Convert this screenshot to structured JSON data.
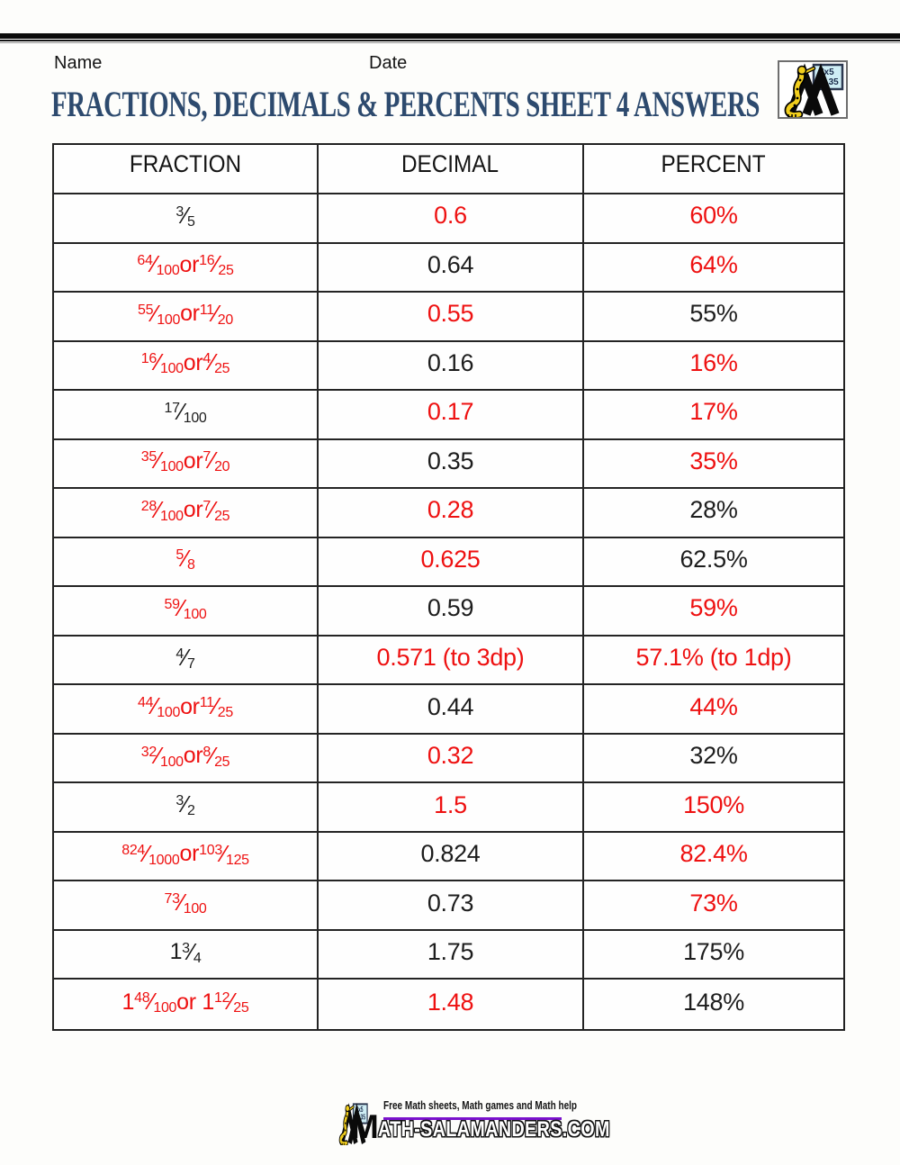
{
  "header": {
    "name_label": "Name",
    "date_label": "Date",
    "title": "FRACTIONS, DECIMALS & PERCENTS SHEET 4 ANSWERS",
    "title_color": "#2d4a6e"
  },
  "logo": {
    "board_line1": "7x5",
    "board_line2": "= 35"
  },
  "colors": {
    "red": "#ee1111",
    "black": "#1d1d1d"
  },
  "table": {
    "columns": [
      "FRACTION",
      "DECIMAL",
      "PERCENT"
    ],
    "rows": [
      {
        "fraction": {
          "color": "black",
          "tokens": [
            {
              "t": "frac",
              "n": "3",
              "d": "5"
            }
          ]
        },
        "decimal": {
          "color": "red",
          "text": "0.6"
        },
        "percent": {
          "color": "red",
          "text": "60%"
        }
      },
      {
        "fraction": {
          "color": "red",
          "tokens": [
            {
              "t": "frac",
              "n": "64",
              "d": "100"
            },
            {
              "t": "text",
              "v": " or "
            },
            {
              "t": "frac",
              "n": "16",
              "d": "25"
            }
          ]
        },
        "decimal": {
          "color": "black",
          "text": "0.64"
        },
        "percent": {
          "color": "red",
          "text": "64%"
        }
      },
      {
        "fraction": {
          "color": "red",
          "tokens": [
            {
              "t": "frac",
              "n": "55",
              "d": "100"
            },
            {
              "t": "text",
              "v": " or "
            },
            {
              "t": "frac",
              "n": "11",
              "d": "20"
            }
          ]
        },
        "decimal": {
          "color": "red",
          "text": "0.55"
        },
        "percent": {
          "color": "black",
          "text": "55%"
        }
      },
      {
        "fraction": {
          "color": "red",
          "tokens": [
            {
              "t": "frac",
              "n": "16",
              "d": "100"
            },
            {
              "t": "text",
              "v": " or "
            },
            {
              "t": "frac",
              "n": "4",
              "d": "25"
            }
          ]
        },
        "decimal": {
          "color": "black",
          "text": "0.16"
        },
        "percent": {
          "color": "red",
          "text": "16%"
        }
      },
      {
        "fraction": {
          "color": "black",
          "tokens": [
            {
              "t": "frac",
              "n": "17",
              "d": "100"
            }
          ]
        },
        "decimal": {
          "color": "red",
          "text": "0.17"
        },
        "percent": {
          "color": "red",
          "text": "17%"
        }
      },
      {
        "fraction": {
          "color": "red",
          "tokens": [
            {
              "t": "frac",
              "n": "35",
              "d": "100"
            },
            {
              "t": "text",
              "v": " or "
            },
            {
              "t": "frac",
              "n": "7",
              "d": "20"
            }
          ]
        },
        "decimal": {
          "color": "black",
          "text": "0.35"
        },
        "percent": {
          "color": "red",
          "text": "35%"
        }
      },
      {
        "fraction": {
          "color": "red",
          "tokens": [
            {
              "t": "frac",
              "n": "28",
              "d": "100"
            },
            {
              "t": "text",
              "v": " or "
            },
            {
              "t": "frac",
              "n": "7",
              "d": "25"
            }
          ]
        },
        "decimal": {
          "color": "red",
          "text": "0.28"
        },
        "percent": {
          "color": "black",
          "text": "28%"
        }
      },
      {
        "fraction": {
          "color": "red",
          "tokens": [
            {
              "t": "frac",
              "n": "5",
              "d": "8"
            }
          ]
        },
        "decimal": {
          "color": "red",
          "text": "0.625"
        },
        "percent": {
          "color": "black",
          "text": "62.5%"
        }
      },
      {
        "fraction": {
          "color": "red",
          "tokens": [
            {
              "t": "frac",
              "n": "59",
              "d": "100"
            }
          ]
        },
        "decimal": {
          "color": "black",
          "text": "0.59"
        },
        "percent": {
          "color": "red",
          "text": "59%"
        }
      },
      {
        "fraction": {
          "color": "black",
          "tokens": [
            {
              "t": "frac",
              "n": "4",
              "d": "7"
            }
          ]
        },
        "decimal": {
          "color": "red",
          "text": "0.571 (to 3dp)"
        },
        "percent": {
          "color": "red",
          "text": "57.1% (to 1dp)"
        }
      },
      {
        "fraction": {
          "color": "red",
          "tokens": [
            {
              "t": "frac",
              "n": "44",
              "d": "100"
            },
            {
              "t": "text",
              "v": " or "
            },
            {
              "t": "frac",
              "n": "11",
              "d": "25"
            }
          ]
        },
        "decimal": {
          "color": "black",
          "text": "0.44"
        },
        "percent": {
          "color": "red",
          "text": "44%"
        }
      },
      {
        "fraction": {
          "color": "red",
          "tokens": [
            {
              "t": "frac",
              "n": "32",
              "d": "100"
            },
            {
              "t": "text",
              "v": " or "
            },
            {
              "t": "frac",
              "n": "8",
              "d": "25"
            }
          ]
        },
        "decimal": {
          "color": "red",
          "text": "0.32"
        },
        "percent": {
          "color": "black",
          "text": "32%"
        }
      },
      {
        "fraction": {
          "color": "black",
          "tokens": [
            {
              "t": "frac",
              "n": "3",
              "d": "2"
            }
          ]
        },
        "decimal": {
          "color": "red",
          "text": "1.5"
        },
        "percent": {
          "color": "red",
          "text": "150%"
        }
      },
      {
        "fraction": {
          "color": "red",
          "tokens": [
            {
              "t": "frac",
              "n": "824",
              "d": "1000"
            },
            {
              "t": "text",
              "v": " or "
            },
            {
              "t": "frac",
              "n": "103",
              "d": "125"
            }
          ]
        },
        "decimal": {
          "color": "black",
          "text": "0.824"
        },
        "percent": {
          "color": "red",
          "text": "82.4%"
        }
      },
      {
        "fraction": {
          "color": "red",
          "tokens": [
            {
              "t": "frac",
              "n": "73",
              "d": "100"
            }
          ]
        },
        "decimal": {
          "color": "black",
          "text": "0.73"
        },
        "percent": {
          "color": "red",
          "text": "73%"
        }
      },
      {
        "fraction": {
          "color": "black",
          "tokens": [
            {
              "t": "text",
              "v": "1 "
            },
            {
              "t": "frac",
              "n": "3",
              "d": "4"
            }
          ]
        },
        "decimal": {
          "color": "black",
          "text": "1.75"
        },
        "percent": {
          "color": "black",
          "text": "175%"
        }
      },
      {
        "fraction": {
          "color": "red",
          "tokens": [
            {
              "t": "text",
              "v": "1 "
            },
            {
              "t": "frac",
              "n": "48",
              "d": "100"
            },
            {
              "t": "text",
              "v": " or 1 "
            },
            {
              "t": "frac",
              "n": "12",
              "d": "25"
            }
          ]
        },
        "decimal": {
          "color": "red",
          "text": "1.48"
        },
        "percent": {
          "color": "black",
          "text": "148%"
        }
      }
    ]
  },
  "footer": {
    "tagline": "Free Math sheets, Math games and Math help",
    "wordmark_initial": "M",
    "wordmark_rest": "ATH-SALAMANDERS.COM",
    "rule_color": "#7a12cc"
  }
}
